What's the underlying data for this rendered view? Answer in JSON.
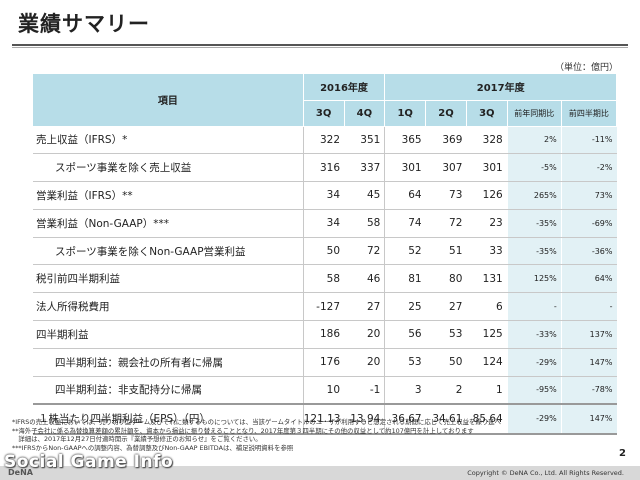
{
  "page": {
    "title": "業績サマリー",
    "unit": "（単位：億円）",
    "page_number": "2"
  },
  "table": {
    "header_item": "項目",
    "year_2016": "2016年度",
    "year_2017": "2017年度",
    "q_2016": [
      "3Q",
      "4Q"
    ],
    "q_2017": [
      "1Q",
      "2Q",
      "3Q"
    ],
    "yoy": "前年同期比",
    "qoq": "前四半期比",
    "rows": [
      {
        "label": "売上収益（IFRS）*",
        "values": [
          "322",
          "351",
          "365",
          "369",
          "328"
        ],
        "yoy": "2%",
        "qoq": "-11%"
      },
      {
        "label": "スポーツ事業を除く売上収益",
        "values": [
          "316",
          "337",
          "301",
          "307",
          "301"
        ],
        "yoy": "-5%",
        "qoq": "-2%"
      },
      {
        "label": "営業利益（IFRS）**",
        "values": [
          "34",
          "45",
          "64",
          "73",
          "126"
        ],
        "yoy": "265%",
        "qoq": "73%"
      },
      {
        "label": "営業利益（Non-GAAP）***",
        "values": [
          "34",
          "58",
          "74",
          "72",
          "23"
        ],
        "yoy": "-35%",
        "qoq": "-69%"
      },
      {
        "label": "スポーツ事業を除くNon-GAAP営業利益",
        "values": [
          "50",
          "72",
          "52",
          "51",
          "33"
        ],
        "yoy": "-35%",
        "qoq": "-36%"
      },
      {
        "label": "税引前四半期利益",
        "values": [
          "58",
          "46",
          "81",
          "80",
          "131"
        ],
        "yoy": "125%",
        "qoq": "64%"
      },
      {
        "label": "法人所得税費用",
        "values": [
          "-127",
          "27",
          "25",
          "27",
          "6"
        ],
        "yoy": "-",
        "qoq": "-"
      },
      {
        "label": "四半期利益",
        "values": [
          "186",
          "20",
          "56",
          "53",
          "125"
        ],
        "yoy": "-33%",
        "qoq": "137%"
      },
      {
        "label": "四半期利益：親会社の所有者に帰属",
        "values": [
          "176",
          "20",
          "53",
          "50",
          "124"
        ],
        "yoy": "-29%",
        "qoq": "147%"
      },
      {
        "label": "四半期利益：非支配持分に帰属",
        "values": [
          "10",
          "-1",
          "3",
          "2",
          "1"
        ],
        "yoy": "-95%",
        "qoq": "-78%"
      }
    ],
    "eps": {
      "label": "１株当たり四半期利益（EPS）（円）",
      "values": [
        "121.13",
        "13.94",
        "36.67",
        "34.61",
        "85.64"
      ],
      "yoy": "-29%",
      "qoq": "147%"
    }
  },
  "notes": [
    "*IFRSの売上収益においては、売り切り型ゲーム及びそれに類するものについては、当該ゲームタイトルのユーザが利用すると想定される期間に応じて売上収益を繰り延べ",
    "**海外子会社に係る為替換算差額の累計額を、資本から損益に振り替えることとなり、2017年度第３四半期にその他の収益として約107億円を計上しております",
    "　詳細は、2017年12月27日付適時開示『業績予想修正のお知らせ』をご覧ください。",
    "***IFRSからNon-GAAPへの調整内容、為替調整及びNon-GAAP EBITDAは、補足説明資料を参照"
  ],
  "footer": {
    "copyright": "Copyright © DeNA Co., Ltd. All Rights Reserved.",
    "logo": "DeNA",
    "watermark": "Social Game Info"
  }
}
